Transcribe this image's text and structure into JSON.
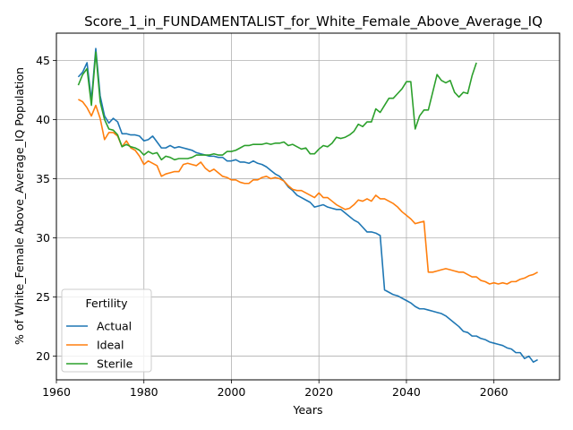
{
  "chart_data": {
    "type": "line",
    "title": "Score_1_in_FUNDAMENTALIST_for_White_Female_Above_Average_IQ",
    "xlabel": "Years",
    "ylabel": "% of White_Female Above_Average_IQ Population",
    "xlim": [
      1960,
      2075
    ],
    "ylim": [
      18,
      47.3
    ],
    "xticks": [
      1960,
      1980,
      2000,
      2020,
      2040,
      2060
    ],
    "yticks": [
      20,
      25,
      30,
      35,
      40,
      45
    ],
    "grid": true,
    "legend": {
      "title": "Fertility",
      "placement": "lower-left"
    },
    "series": [
      {
        "name": "Actual",
        "color": "#1f77b4",
        "x": [
          1965,
          1966,
          1967,
          1968,
          1969,
          1970,
          1971,
          1972,
          1973,
          1974,
          1975,
          1976,
          1977,
          1978,
          1979,
          1980,
          1981,
          1982,
          1983,
          1984,
          1985,
          1986,
          1987,
          1988,
          1989,
          1990,
          1991,
          1992,
          1993,
          1994,
          1995,
          1996,
          1997,
          1998,
          1999,
          2000,
          2001,
          2002,
          2003,
          2004,
          2005,
          2006,
          2007,
          2008,
          2009,
          2010,
          2011,
          2012,
          2013,
          2014,
          2015,
          2016,
          2017,
          2018,
          2019,
          2020,
          2021,
          2022,
          2023,
          2024,
          2025,
          2026,
          2027,
          2028,
          2029,
          2030,
          2031,
          2032,
          2033,
          2034,
          2035,
          2036,
          2037,
          2038,
          2039,
          2040,
          2041,
          2042,
          2043,
          2044,
          2045,
          2046,
          2047,
          2048,
          2049,
          2050,
          2051,
          2052,
          2053,
          2054,
          2055,
          2056,
          2057,
          2058,
          2059,
          2060,
          2061,
          2062,
          2063,
          2064,
          2065,
          2066,
          2067,
          2068,
          2069,
          2070
        ],
        "values": [
          43.6,
          44.0,
          44.8,
          41.6,
          46.0,
          42.0,
          40.3,
          39.7,
          40.1,
          39.8,
          38.8,
          38.8,
          38.7,
          38.7,
          38.6,
          38.2,
          38.3,
          38.6,
          38.1,
          37.6,
          37.6,
          37.8,
          37.6,
          37.7,
          37.6,
          37.5,
          37.4,
          37.2,
          37.1,
          37.0,
          36.9,
          36.9,
          36.8,
          36.8,
          36.5,
          36.5,
          36.6,
          36.4,
          36.4,
          36.3,
          36.5,
          36.3,
          36.2,
          36.0,
          35.7,
          35.4,
          35.2,
          34.8,
          34.3,
          34.0,
          33.6,
          33.4,
          33.2,
          33.0,
          32.6,
          32.7,
          32.8,
          32.6,
          32.5,
          32.4,
          32.4,
          32.1,
          31.8,
          31.5,
          31.3,
          30.9,
          30.5,
          30.5,
          30.4,
          30.2,
          25.6,
          25.4,
          25.2,
          25.1,
          24.9,
          24.7,
          24.5,
          24.2,
          24.0,
          24.0,
          23.9,
          23.8,
          23.7,
          23.6,
          23.4,
          23.1,
          22.8,
          22.5,
          22.1,
          22.0,
          21.7,
          21.7,
          21.5,
          21.4,
          21.2,
          21.1,
          21.0,
          20.9,
          20.7,
          20.6,
          20.3,
          20.3,
          19.8,
          20.0,
          19.5,
          19.7
        ]
      },
      {
        "name": "Ideal",
        "color": "#ff7f0e",
        "x": [
          1965,
          1966,
          1967,
          1968,
          1969,
          1970,
          1971,
          1972,
          1973,
          1974,
          1975,
          1976,
          1977,
          1978,
          1979,
          1980,
          1981,
          1982,
          1983,
          1984,
          1985,
          1986,
          1987,
          1988,
          1989,
          1990,
          1991,
          1992,
          1993,
          1994,
          1995,
          1996,
          1997,
          1998,
          1999,
          2000,
          2001,
          2002,
          2003,
          2004,
          2005,
          2006,
          2007,
          2008,
          2009,
          2010,
          2011,
          2012,
          2013,
          2014,
          2015,
          2016,
          2017,
          2018,
          2019,
          2020,
          2021,
          2022,
          2023,
          2024,
          2025,
          2026,
          2027,
          2028,
          2029,
          2030,
          2031,
          2032,
          2033,
          2034,
          2035,
          2036,
          2037,
          2038,
          2039,
          2040,
          2041,
          2042,
          2043,
          2044,
          2045,
          2046,
          2047,
          2048,
          2049,
          2050,
          2051,
          2052,
          2053,
          2054,
          2055,
          2056,
          2057,
          2058,
          2059,
          2060,
          2061,
          2062,
          2063,
          2064,
          2065,
          2066,
          2067,
          2068,
          2069,
          2070
        ],
        "values": [
          41.7,
          41.5,
          41.0,
          40.3,
          41.2,
          40.1,
          38.3,
          38.9,
          38.9,
          38.6,
          37.7,
          38.2,
          37.6,
          37.4,
          36.9,
          36.2,
          36.5,
          36.3,
          36.1,
          35.2,
          35.4,
          35.5,
          35.6,
          35.6,
          36.2,
          36.3,
          36.2,
          36.1,
          36.4,
          35.9,
          35.6,
          35.8,
          35.5,
          35.2,
          35.1,
          34.9,
          34.9,
          34.7,
          34.6,
          34.6,
          34.9,
          34.9,
          35.1,
          35.2,
          35.0,
          35.1,
          35.0,
          34.8,
          34.4,
          34.1,
          34.0,
          34.0,
          33.8,
          33.6,
          33.4,
          33.8,
          33.4,
          33.4,
          33.1,
          32.8,
          32.6,
          32.4,
          32.5,
          32.8,
          33.2,
          33.1,
          33.3,
          33.1,
          33.6,
          33.3,
          33.3,
          33.1,
          32.9,
          32.6,
          32.2,
          31.9,
          31.6,
          31.2,
          31.3,
          31.4,
          27.1,
          27.1,
          27.2,
          27.3,
          27.4,
          27.3,
          27.2,
          27.1,
          27.1,
          26.9,
          26.7,
          26.7,
          26.4,
          26.3,
          26.1,
          26.2,
          26.1,
          26.2,
          26.1,
          26.3,
          26.3,
          26.5,
          26.6,
          26.8,
          26.9,
          27.1
        ]
      },
      {
        "name": "Sterile",
        "color": "#2ca02c",
        "x": [
          1965,
          1966,
          1967,
          1968,
          1969,
          1970,
          1971,
          1972,
          1973,
          1974,
          1975,
          1976,
          1977,
          1978,
          1979,
          1980,
          1981,
          1982,
          1983,
          1984,
          1985,
          1986,
          1987,
          1988,
          1989,
          1990,
          1991,
          1992,
          1993,
          1994,
          1995,
          1996,
          1997,
          1998,
          1999,
          2000,
          2001,
          2002,
          2003,
          2004,
          2005,
          2006,
          2007,
          2008,
          2009,
          2010,
          2011,
          2012,
          2013,
          2014,
          2015,
          2016,
          2017,
          2018,
          2019,
          2020,
          2021,
          2022,
          2023,
          2024,
          2025,
          2026,
          2027,
          2028,
          2029,
          2030,
          2031,
          2032,
          2033,
          2034,
          2035,
          2036,
          2037,
          2038,
          2039,
          2040,
          2041,
          2042,
          2043,
          2044,
          2045,
          2046,
          2047,
          2048,
          2049,
          2050,
          2051,
          2052,
          2053,
          2054,
          2055,
          2056
        ],
        "values": [
          42.9,
          43.8,
          44.3,
          41.2,
          45.7,
          41.5,
          40.0,
          39.2,
          39.1,
          38.7,
          37.7,
          37.9,
          37.7,
          37.6,
          37.4,
          37.0,
          37.3,
          37.1,
          37.2,
          36.6,
          36.9,
          36.8,
          36.6,
          36.7,
          36.7,
          36.7,
          36.8,
          37.0,
          37.0,
          37.0,
          37.0,
          37.1,
          37.0,
          37.0,
          37.3,
          37.3,
          37.4,
          37.6,
          37.8,
          37.8,
          37.9,
          37.9,
          37.9,
          38.0,
          37.9,
          38.0,
          38.0,
          38.1,
          37.8,
          37.9,
          37.7,
          37.5,
          37.6,
          37.1,
          37.1,
          37.5,
          37.8,
          37.7,
          38.0,
          38.5,
          38.4,
          38.5,
          38.7,
          39.0,
          39.6,
          39.4,
          39.8,
          39.8,
          40.9,
          40.6,
          41.2,
          41.8,
          41.8,
          42.2,
          42.6,
          43.2,
          43.2,
          39.2,
          40.3,
          40.8,
          40.8,
          42.3,
          43.8,
          43.3,
          43.1,
          43.3,
          42.3,
          41.9,
          42.3,
          42.2,
          43.7,
          44.8
        ]
      }
    ]
  }
}
